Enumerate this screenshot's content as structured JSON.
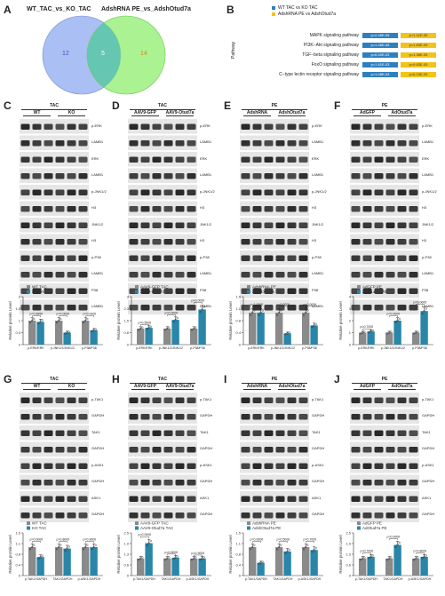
{
  "panel_letters": [
    "A",
    "B",
    "C",
    "D",
    "E",
    "F",
    "G",
    "H",
    "I",
    "J"
  ],
  "venn": {
    "left_title": "WT_TAC_vs_KO_TAC",
    "right_title": "AdshRNA PE_vs_AdshOtud7a",
    "left_only": "12",
    "overlap": "5",
    "right_only": "14",
    "left_color": "#9bb4f2",
    "right_color": "#8fee6e"
  },
  "pathway_table": {
    "axis_label": "Pathway",
    "legend": [
      {
        "label": "WT TAC vs KO TAC",
        "color": "#2e7fc0"
      },
      {
        "label": "AdshRNA PE vs AdshOtud7a",
        "color": "#f2c31a"
      }
    ],
    "rows": [
      {
        "name": "MAPK signaling pathway",
        "p1": "p=2.45E-05",
        "p2": "p=1.41E-05"
      },
      {
        "name": "PI3K−Akt signaling pathway",
        "p1": "p=1.46E-05",
        "p2": "p=1.83E-03"
      },
      {
        "name": "TGF−beta signaling pathway",
        "p1": "p=6.40E-03",
        "p2": "p=1.36E-03"
      },
      {
        "name": "FoxO signaling pathway",
        "p1": "p=1.81E-03",
        "p2": "p=9.83E-03"
      },
      {
        "name": "C−type lectin receptor signaling pathway",
        "p1": "p=1.08E-03",
        "p2": "p=6.24E-03"
      }
    ]
  },
  "blots_top": [
    {
      "letter": "C",
      "header": "TAC",
      "groups": [
        "WT",
        "KO"
      ],
      "labels": [
        "p-ERK",
        "LAMB1",
        "ERK",
        "LAMB1",
        "p-JNK1/2",
        "H3",
        "JNK1/2",
        "H3",
        "p-P38",
        "LAMB1",
        "P38",
        "LAMB1"
      ],
      "legend": [
        "WT TAC",
        "KO TAC"
      ]
    },
    {
      "letter": "D",
      "header": "TAC",
      "groups": [
        "AAV9-GFP",
        "AAV9-Otud7a"
      ],
      "labels": [
        "p-ERK",
        "LAMB1",
        "ERK",
        "LAMB1",
        "p-JNK1/2",
        "H3",
        "JNK1/2",
        "H3",
        "p-P38",
        "LAMB1",
        "P38",
        "LAMB1"
      ],
      "legend": [
        "AAV9-GFP TAC",
        "AAV9-Otud7a TAC"
      ]
    },
    {
      "letter": "E",
      "header": "PE",
      "groups": [
        "AdshRNA",
        "AdshOtud7a"
      ],
      "labels": [
        "p-ERK",
        "LAMB1",
        "ERK",
        "LAMB1",
        "p-JNK1/2",
        "H3",
        "JNK1/2",
        "H3",
        "p-P38",
        "LAMB1",
        "P38",
        "LAMB1"
      ],
      "legend": [
        "AdshRNA PE",
        "AdshOtud7a PE"
      ]
    },
    {
      "letter": "F",
      "header": "PE",
      "groups": [
        "AdGFP",
        "AdOtud7a"
      ],
      "labels": [
        "p-ERK",
        "LAMB1",
        "ERK",
        "LAMB1",
        "p-JNK1/2",
        "H3",
        "JNK1/2",
        "H3",
        "p-P38",
        "LAMB1",
        "P38",
        "LAMB1"
      ],
      "legend": [
        "AdGFP PE",
        "AdOtud7a PE"
      ]
    }
  ],
  "blots_bottom": [
    {
      "letter": "G",
      "header": "TAC",
      "groups": [
        "WT",
        "KO"
      ],
      "labels": [
        "p-TAK1",
        "GAPDH",
        "TAK1",
        "GAPDH",
        "p-ASK1",
        "GAPDH",
        "ASK1",
        "GAPDH"
      ],
      "legend": [
        "WT TAC",
        "KO TAC"
      ]
    },
    {
      "letter": "H",
      "header": "TAC",
      "groups": [
        "AAV9-GFP",
        "AAV9-Otud7a"
      ],
      "labels": [
        "p-TAK1",
        "GAPDH",
        "TAK1",
        "GAPDH",
        "p-ASK1",
        "GAPDH",
        "ASK1",
        "GAPDH"
      ],
      "legend": [
        "AAV9-GFP TAC",
        "AAV9-Otud7a TAC"
      ]
    },
    {
      "letter": "I",
      "header": "PE",
      "groups": [
        "AdshRNA",
        "AdshOtud7a"
      ],
      "labels": [
        "p-TAK1",
        "GAPDH",
        "TAK1",
        "GAPDH",
        "p-ASK1",
        "GAPDH",
        "ASK1",
        "GAPDH"
      ],
      "legend": [
        "AdshRNA PE",
        "AdshOtud7a PE"
      ]
    },
    {
      "letter": "J",
      "header": "PE",
      "groups": [
        "AdGFP",
        "AdOtud7a"
      ],
      "labels": [
        "p-TAK1",
        "GAPDH",
        "TAK1",
        "GAPDH",
        "p-ASK1",
        "GAPDH",
        "ASK1",
        "GAPDH"
      ],
      "legend": [
        "AdGFP PE",
        "AdOtud7a PE"
      ]
    }
  ],
  "chart_data": [
    {
      "panel": "C",
      "type": "bar",
      "ylabel": "Relative protein Level",
      "ylim": [
        0,
        2
      ],
      "categories": [
        "p-ERK/ERK",
        "p-JNK1/2/JNK1/2",
        "p-P38/P38"
      ],
      "series": [
        {
          "name": "WT TAC",
          "color": "#8a8a8a",
          "values": [
            1.0,
            1.0,
            1.0
          ]
        },
        {
          "name": "KO TAC",
          "color": "#2a86a8",
          "values": [
            0.95,
            0.5,
            0.6
          ]
        }
      ],
      "pvalues": [
        "p=0.8950",
        "p=0.0000",
        "p=0.0000"
      ]
    },
    {
      "panel": "D",
      "type": "bar",
      "ylabel": "Relative protein Level",
      "ylim": [
        0,
        3
      ],
      "categories": [
        "p-ERK/ERK",
        "p-JNK1/2/JNK1/2",
        "p-P38/P38"
      ],
      "series": [
        {
          "name": "AAV9-GFP TAC",
          "color": "#8a8a8a",
          "values": [
            1.0,
            1.0,
            1.0
          ]
        },
        {
          "name": "AAV9-Otud7a TAC",
          "color": "#2a86a8",
          "values": [
            1.05,
            1.55,
            2.2
          ]
        }
      ],
      "pvalues": [
        "p=0.5000",
        "p=0.0000",
        "p=0.0000"
      ]
    },
    {
      "panel": "E",
      "type": "bar",
      "ylabel": "Relative protein Level",
      "ylim": [
        0,
        1.5
      ],
      "categories": [
        "p-ERK/ERK",
        "p-JNK1/2/JNK1/2",
        "p-P38/P38"
      ],
      "series": [
        {
          "name": "AdshRNA PE",
          "color": "#8a8a8a",
          "values": [
            1.0,
            1.0,
            1.0
          ]
        },
        {
          "name": "AdshOtud7a PE",
          "color": "#2a86a8",
          "values": [
            1.0,
            0.35,
            0.6
          ]
        }
      ],
      "pvalues": [
        "p=1.0000",
        "p=0.0000",
        "p=0.0000"
      ]
    },
    {
      "panel": "F",
      "type": "bar",
      "ylabel": "Relative protein Level",
      "ylim": [
        0,
        4
      ],
      "categories": [
        "p-ERK/ERK",
        "p-JNK1/2/JNK1/2",
        "p-P38/P38"
      ],
      "series": [
        {
          "name": "AdGFP PE",
          "color": "#8a8a8a",
          "values": [
            1.0,
            1.0,
            1.0
          ]
        },
        {
          "name": "AdOtud7a PE",
          "color": "#2a86a8",
          "values": [
            1.1,
            2.0,
            2.8
          ]
        }
      ],
      "pvalues": [
        "p=0.7000",
        "p=0.0000",
        "p=0.0000"
      ]
    },
    {
      "panel": "G",
      "type": "bar",
      "ylabel": "Relative protein Level",
      "ylim": [
        0,
        1.5
      ],
      "categories": [
        "p-TAK1/GAPDH",
        "TAK1/GAPDH",
        "p-ASK1/GAPDH"
      ],
      "series": [
        {
          "name": "WT TAC",
          "color": "#8a8a8a",
          "values": [
            1.0,
            1.0,
            1.0
          ]
        },
        {
          "name": "KO TAC",
          "color": "#2a86a8",
          "values": [
            0.65,
            0.95,
            1.0
          ]
        }
      ],
      "pvalues": [
        "p=0.0000",
        "p=0.8000",
        "p=0.9000"
      ]
    },
    {
      "panel": "H",
      "type": "bar",
      "ylabel": "Relative protein Level",
      "ylim": [
        0,
        2.5
      ],
      "categories": [
        "p-TAK1/GAPDH",
        "TAK1/GAPDH",
        "p-ASK1/GAPDH"
      ],
      "series": [
        {
          "name": "AAV9-GFP TAC",
          "color": "#8a8a8a",
          "values": [
            1.0,
            1.0,
            1.0
          ]
        },
        {
          "name": "AAV9-Otud7a TAC",
          "color": "#2a86a8",
          "values": [
            1.9,
            1.05,
            1.0
          ]
        }
      ],
      "pvalues": [
        "p=0.0000",
        "p=0.5000",
        "p=0.9000"
      ]
    },
    {
      "panel": "I",
      "type": "bar",
      "ylabel": "Relative protein Level",
      "ylim": [
        0,
        1.5
      ],
      "categories": [
        "p-TAK1/GAPDH",
        "TAK1/GAPDH",
        "p-ASK1/GAPDH"
      ],
      "series": [
        {
          "name": "AdshRNA PE",
          "color": "#8a8a8a",
          "values": [
            1.0,
            1.0,
            1.0
          ]
        },
        {
          "name": "AdshOtud7a PE",
          "color": "#2a86a8",
          "values": [
            0.45,
            0.85,
            0.9
          ]
        }
      ],
      "pvalues": [
        "p=0.0000",
        "p=0.5000",
        "p=0.7000"
      ]
    },
    {
      "panel": "J",
      "type": "bar",
      "ylabel": "Relative protein Level",
      "ylim": [
        0,
        2.5
      ],
      "categories": [
        "p-TAK1/GAPDH",
        "TAK1/GAPDH",
        "p-ASK1/GAPDH"
      ],
      "series": [
        {
          "name": "AdGFP PE",
          "color": "#8a8a8a",
          "values": [
            1.0,
            1.0,
            1.0
          ]
        },
        {
          "name": "AdOtud7a PE",
          "color": "#2a86a8",
          "values": [
            1.1,
            1.8,
            1.1
          ]
        }
      ],
      "pvalues": [
        "p=0.7000",
        "p=0.0000",
        "p=0.8000"
      ]
    }
  ]
}
